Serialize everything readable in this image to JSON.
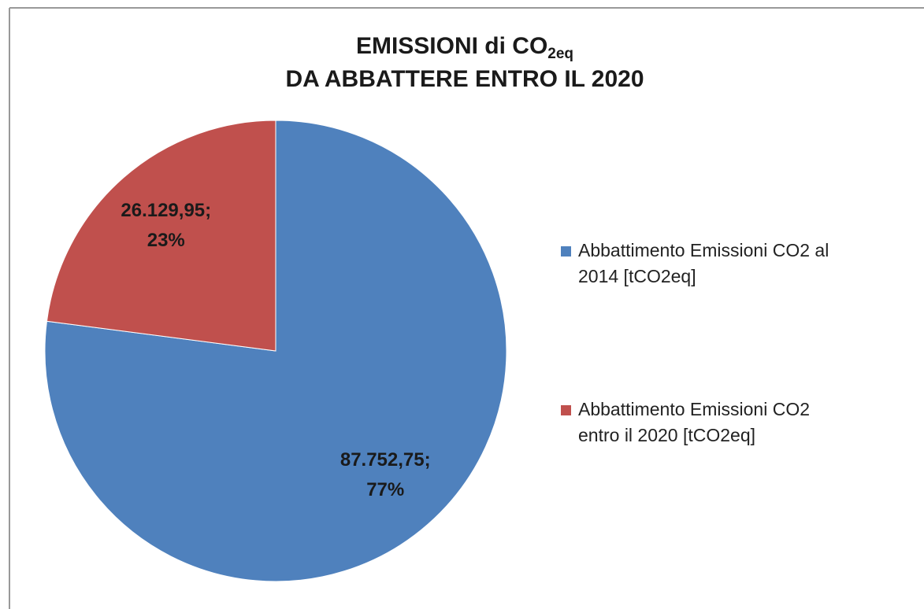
{
  "chart_data": {
    "type": "pie",
    "title": {
      "main": "EMISSIONI di CO",
      "subscript": "2eq",
      "line2": "DA ABBATTERE ENTRO IL 2020"
    },
    "categories": [
      "Abbattimento Emissioni CO2 al 2014 [tCO2eq]",
      "Abbattimento Emissioni CO2 entro il 2020 [tCO2eq]"
    ],
    "values": [
      87752.75,
      26129.95
    ],
    "value_labels": [
      "87.752,75;",
      "26.129,95;"
    ],
    "percents": [
      77,
      23
    ],
    "percent_labels": [
      "77%",
      "23%"
    ],
    "colors": [
      "#4f81bd",
      "#c0504d"
    ],
    "legend": "right"
  }
}
